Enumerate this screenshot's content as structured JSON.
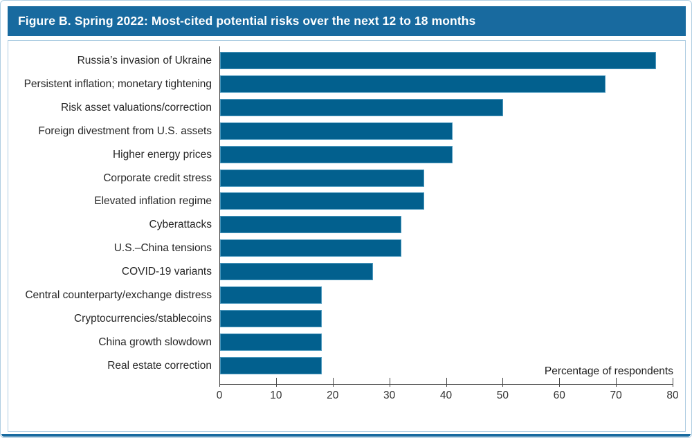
{
  "figure": {
    "title": "Figure B. Spring 2022: Most-cited potential risks over the next 12 to 18 months"
  },
  "chart_data": {
    "type": "bar",
    "orientation": "horizontal",
    "title": "Figure B. Spring 2022: Most-cited potential risks over the next 12 to 18 months",
    "categories": [
      "Russia’s invasion of Ukraine",
      "Persistent inflation; monetary tightening",
      "Risk asset valuations/correction",
      "Foreign divestment from U.S. assets",
      "Higher energy prices",
      "Corporate credit stress",
      "Elevated inflation regime",
      "Cyberattacks",
      "U.S.–China tensions",
      "COVID-19 variants",
      "Central counterparty/exchange distress",
      "Cryptocurrencies/stablecoins",
      "China growth slowdown",
      "Real estate correction"
    ],
    "values": [
      77,
      68,
      50,
      41,
      41,
      36,
      36,
      32,
      32,
      27,
      18,
      18,
      18,
      18
    ],
    "xlabel": "Percentage of respondents",
    "ylabel": "",
    "xlim": [
      0,
      80
    ],
    "xticks": [
      0,
      10,
      20,
      30,
      40,
      50,
      60,
      70,
      80
    ],
    "grid": false,
    "legend": "none",
    "colors": {
      "bar": "#02608e",
      "accent": "#186a9f",
      "border_light": "#aecde2",
      "axis": "#454545"
    }
  }
}
